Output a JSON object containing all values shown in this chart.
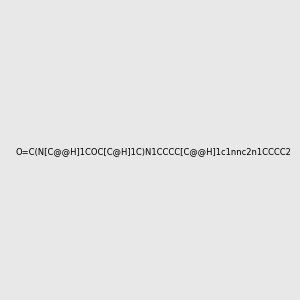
{
  "smiles": "O=C(N[C@@H]1COC[C@H]1C)N1CCCC[C@@H]1c1nnc2n1CCCC2",
  "image_size": 300,
  "background_color": "#e8e8e8",
  "title": ""
}
